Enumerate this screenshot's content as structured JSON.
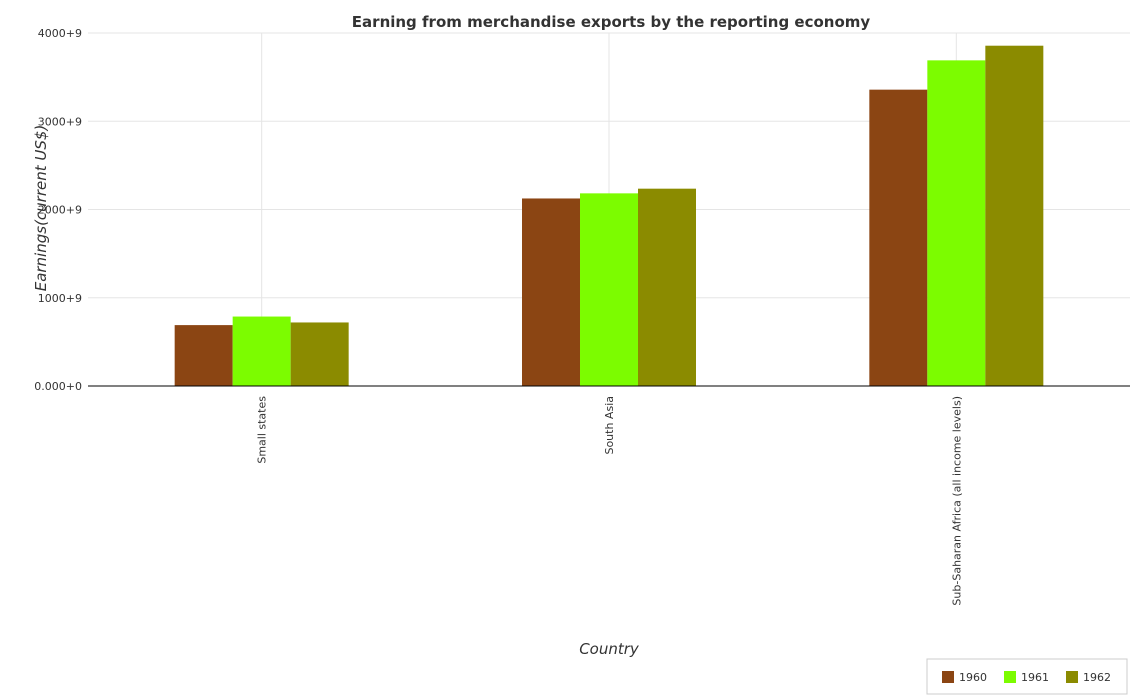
{
  "chart_data": {
    "type": "bar",
    "title": "Earning from merchandise exports by the reporting economy",
    "xlabel": "Country",
    "ylabel": "Earnings(current US$)",
    "categories": [
      "Small states",
      "South Asia",
      "Sub-Saharan Africa (all income levels)"
    ],
    "series": [
      {
        "name": "1960",
        "color": "#8B4513",
        "values": [
          690000000,
          2125000000,
          3358000000
        ]
      },
      {
        "name": "1961",
        "color": "#7CFC00",
        "values": [
          787000000,
          2183000000,
          3690000000
        ]
      },
      {
        "name": "1962",
        "color": "#8B8B00",
        "values": [
          720000000,
          2236000000,
          3856000000
        ]
      }
    ],
    "ylim": [
      0,
      4000000000
    ],
    "yticks": [
      0,
      1000000000,
      2000000000,
      3000000000,
      4000000000
    ],
    "ytick_labels": [
      "0.000+0",
      "1000+9",
      "2000+9",
      "3000+9",
      "4000+9"
    ],
    "grid": true,
    "legend_position": "bottom-right"
  }
}
